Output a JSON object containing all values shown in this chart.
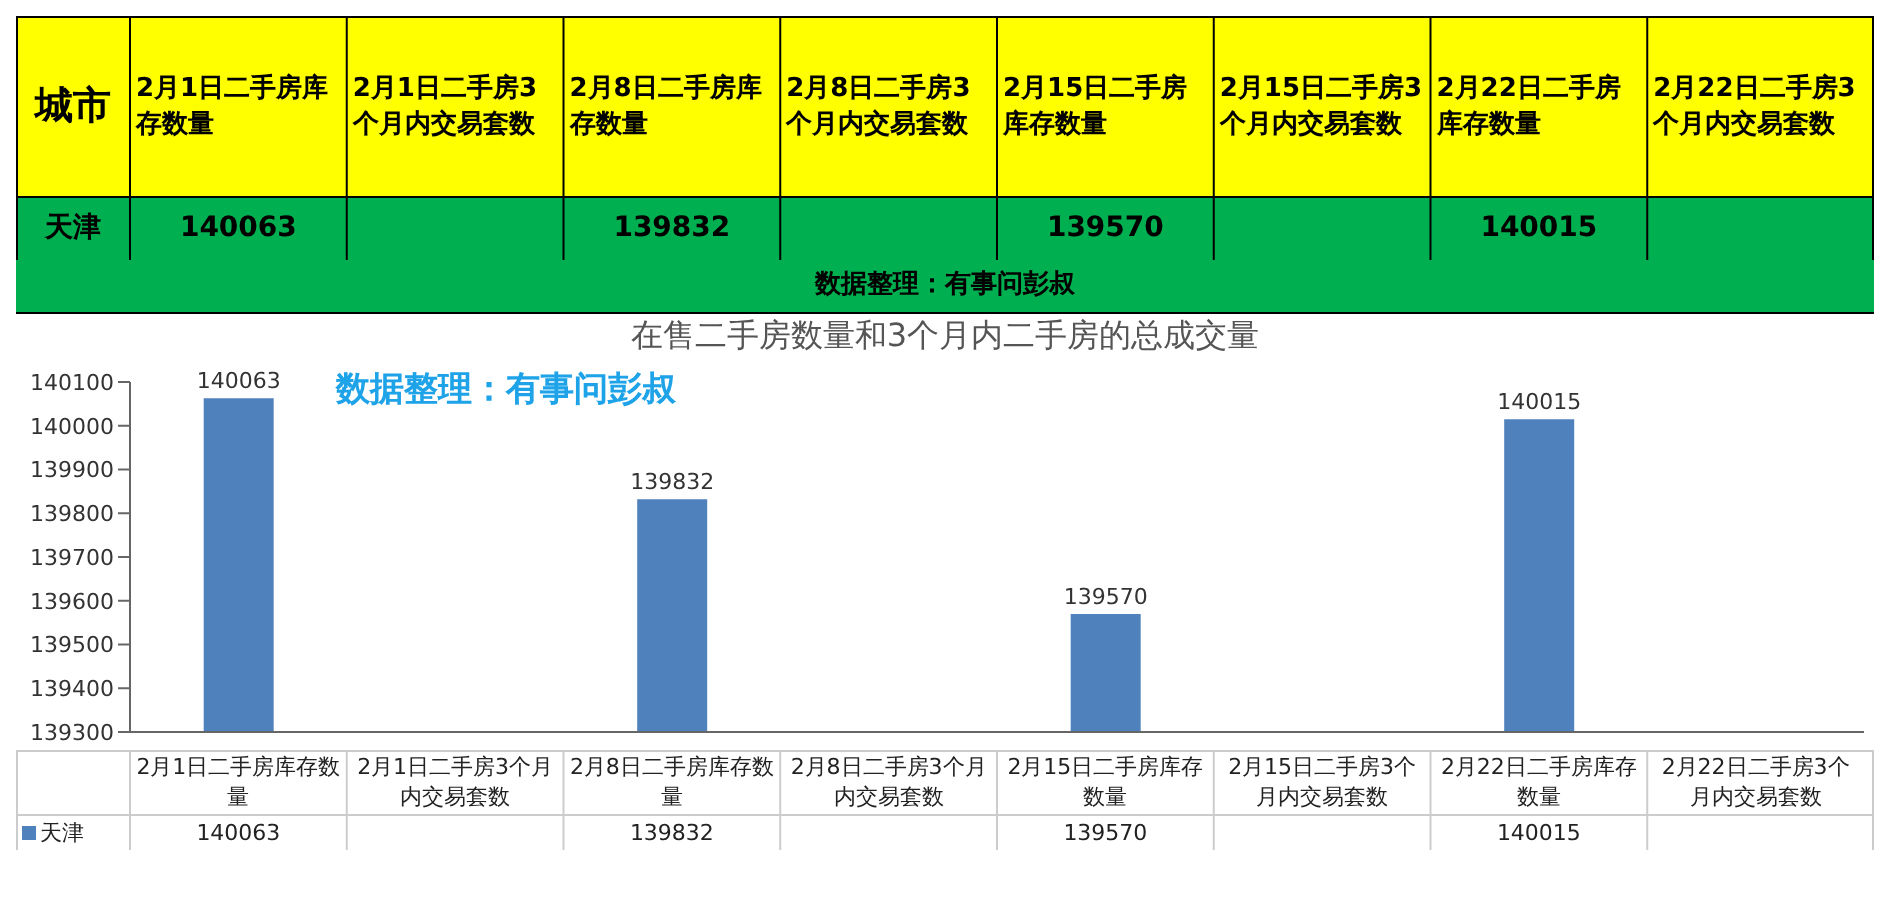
{
  "chart_data": {
    "type": "bar",
    "title": "在售二手房数量和3个月内二手房的总成交量",
    "categories": [
      "2月1日二手房库存数量",
      "2月1日二手房3个月内交易套数",
      "2月8日二手房库存数量",
      "2月8日二手房3个月内交易套数",
      "2月15日二手房库存数量",
      "2月15日二手房3个月内交易套数",
      "2月22日二手房库存数量",
      "2月22日二手房3个月内交易套数"
    ],
    "series": [
      {
        "name": "天津",
        "color": "#4f81bd",
        "values": [
          140063,
          null,
          139832,
          null,
          139570,
          null,
          140015,
          null
        ],
        "value_labels": [
          "140063",
          null,
          "139832",
          null,
          "139570",
          null,
          "140015",
          null
        ]
      }
    ],
    "ylim": [
      139300,
      140100
    ],
    "yticks": [
      139300,
      139400,
      139500,
      139600,
      139700,
      139800,
      139900,
      140000,
      140100
    ],
    "grid": false,
    "legend": "bottom",
    "legend_title": "城市",
    "annotations": [
      "数据整理：有事问彭叔",
      "数据整理：有事问彭叔"
    ]
  }
}
